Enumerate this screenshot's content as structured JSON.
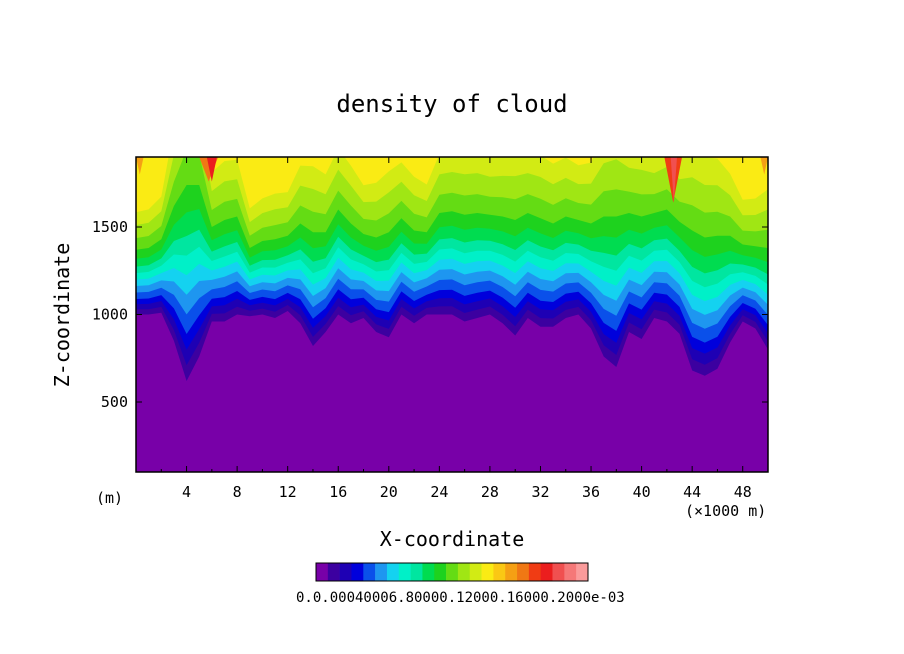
{
  "chart_data": {
    "type": "heatmap",
    "title": "density of cloud",
    "xlabel": "X-coordinate",
    "ylabel": "Z-coordinate",
    "x_unit_left": "(m)",
    "x_unit_right": "(×1000 m)",
    "xlim": [
      0,
      50
    ],
    "ylim": [
      100,
      1900
    ],
    "x_ticks": [
      "4",
      "8",
      "12",
      "16",
      "20",
      "24",
      "28",
      "32",
      "36",
      "40",
      "44",
      "48"
    ],
    "y_ticks": [
      "500",
      "1000",
      "1500"
    ],
    "colorbar_label": "0.0.00040006.80000.12000.16000.2000e-03",
    "colorbar_colors": [
      "#7800a8",
      "#3c00a0",
      "#1e00b4",
      "#0000dc",
      "#0a50ea",
      "#1e96f0",
      "#14d2f0",
      "#00f0c8",
      "#00e6a0",
      "#00dc50",
      "#1ed21e",
      "#64dc14",
      "#a0e614",
      "#d2eb14",
      "#faeb14",
      "#fac814",
      "#f5a014",
      "#f07814",
      "#f03c14",
      "#eb1e1e",
      "#f05050",
      "#f57878",
      "#fa9b9b"
    ],
    "cloud_base_m": [
      1000,
      1000,
      1010,
      850,
      620,
      760,
      960,
      960,
      1000,
      990,
      1000,
      980,
      1020,
      950,
      820,
      900,
      1000,
      950,
      980,
      900,
      870,
      1000,
      950,
      1000,
      1000,
      1000,
      960,
      980,
      1000,
      950,
      880,
      980,
      930,
      930,
      980,
      1000,
      920,
      760,
      700,
      900,
      860,
      980,
      960,
      890,
      680,
      650,
      690,
      840,
      960,
      920,
      800
    ],
    "x_positions_km": [
      0,
      1,
      2,
      3,
      4,
      5,
      6,
      7,
      8,
      9,
      10,
      11,
      12,
      13,
      14,
      15,
      16,
      17,
      18,
      19,
      20,
      21,
      22,
      23,
      24,
      25,
      26,
      27,
      28,
      29,
      30,
      31,
      32,
      33,
      34,
      35,
      36,
      37,
      38,
      39,
      40,
      41,
      42,
      43,
      44,
      45,
      46,
      47,
      48,
      49,
      50
    ],
    "green_top_m": [
      1370,
      1380,
      1430,
      1620,
      1740,
      1740,
      1500,
      1540,
      1560,
      1380,
      1420,
      1430,
      1450,
      1520,
      1470,
      1470,
      1600,
      1520,
      1460,
      1440,
      1470,
      1550,
      1480,
      1470,
      1580,
      1590,
      1570,
      1580,
      1570,
      1560,
      1540,
      1580,
      1550,
      1520,
      1560,
      1540,
      1520,
      1560,
      1560,
      1580,
      1560,
      1580,
      1600,
      1530,
      1480,
      1440,
      1450,
      1450,
      1400,
      1390,
      1380
    ]
  }
}
